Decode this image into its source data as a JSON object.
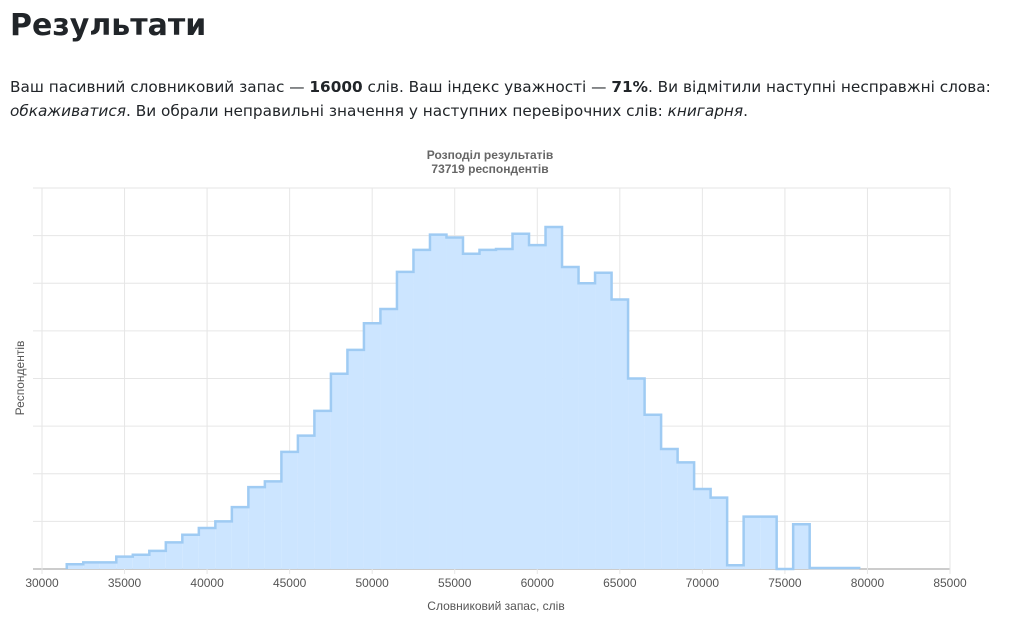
{
  "header": {
    "title": "Результати"
  },
  "paragraph": [
    "Ваш пасивний словниковий запас — ",
    "16000",
    " слів. Ваш індекс уважності — ",
    "71%",
    ". Ви відмітили наступні несправжні слова: ",
    "обкаживатися",
    ". Ви обрали неправильні значення у наступних перевірочних слів: ",
    "книгарня",
    "."
  ],
  "chart_data": {
    "type": "histogram",
    "title": "Розподіл результатів",
    "subtitle": "73719 респондентів",
    "x_label": "Словниковий запас, слів",
    "y_label": "Респондентів",
    "bins": [
      31500,
      32500,
      33500,
      34500,
      35500,
      36500,
      37500,
      38500,
      39500,
      40500,
      41500,
      42500,
      43500,
      44500,
      45500,
      46500,
      47500,
      48500,
      49500,
      50500,
      51500,
      52500,
      53500,
      54500,
      55500,
      56500,
      57500,
      58500,
      59500,
      60500,
      61500,
      62500,
      63500,
      64500,
      65500,
      66500,
      67500,
      68500,
      69500,
      70500,
      71500,
      72500,
      73500,
      74500,
      75500,
      76500,
      77500,
      78500,
      79500
    ],
    "values": [
      50,
      70,
      70,
      130,
      150,
      190,
      280,
      360,
      430,
      500,
      650,
      860,
      920,
      1230,
      1400,
      1660,
      2050,
      2300,
      2580,
      2730,
      3120,
      3350,
      3510,
      3480,
      3310,
      3350,
      3360,
      3520,
      3400,
      3590,
      3170,
      3000,
      3110,
      2830,
      2000,
      1620,
      1260,
      1120,
      840,
      750,
      40,
      550,
      550,
      0,
      470,
      10,
      10,
      10
    ],
    "color": "#cce5ff",
    "edge_color": "#9fcbf3",
    "xlim": [
      30000,
      85000
    ],
    "xticks": [
      30000,
      35000,
      40000,
      45000,
      50000,
      55000,
      60000,
      65000,
      70000,
      75000,
      80000,
      85000
    ],
    "ylim": [
      0,
      4000
    ],
    "ygrid": [
      0,
      500,
      1000,
      1500,
      2000,
      2500,
      3000,
      3500,
      4000
    ],
    "grid": true
  }
}
